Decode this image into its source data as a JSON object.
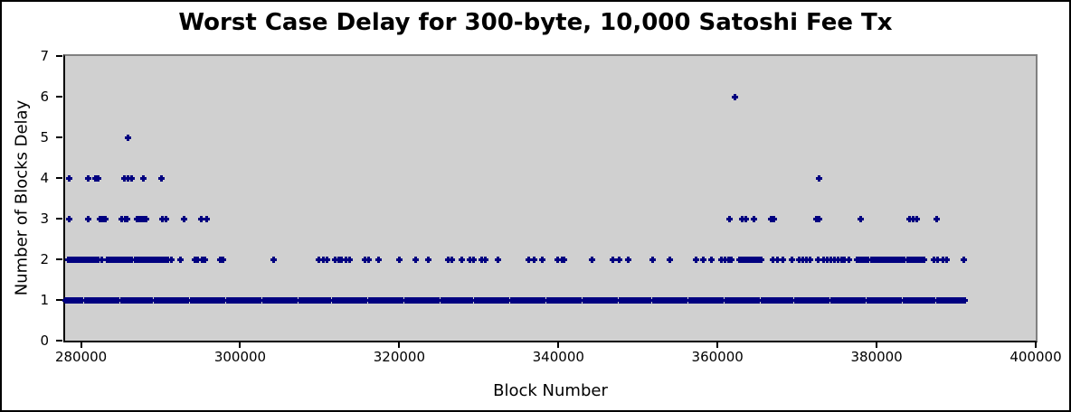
{
  "title": "Worst Case Delay for 300-byte, 10,000 Satoshi Fee Tx",
  "colors": {
    "marker": "#000080",
    "plot_background": "#d0d0d0",
    "axis_line": "#000000",
    "frame_line": "#808080",
    "page_background": "#ffffff",
    "outer_border": "#000000"
  },
  "chart_data": {
    "type": "scatter",
    "title": "Worst Case Delay for 300-byte, 10,000 Satoshi Fee Tx",
    "xlabel": "Block Number",
    "ylabel": "Number of Blocks Delay",
    "xlim": [
      278000,
      400000
    ],
    "ylim": [
      0,
      7
    ],
    "grid": false,
    "legend": null,
    "x_ticks": [
      280000,
      300000,
      320000,
      340000,
      360000,
      380000,
      400000
    ],
    "x_tick_labels": [
      "280000",
      "300000",
      "320000",
      "340000",
      "360000",
      "380000",
      "400000"
    ],
    "y_ticks": [
      0,
      1,
      2,
      3,
      4,
      5,
      6,
      7
    ],
    "y_tick_labels": [
      "0",
      "1",
      "2",
      "3",
      "4",
      "5",
      "6",
      "7"
    ],
    "series": [
      {
        "name": "delay-1-blocks",
        "y": 1,
        "continuous_run": true,
        "x_start": 278000,
        "x_end": 391300,
        "step": 350
      },
      {
        "name": "delay-2-blocks",
        "y": 2,
        "x": [
          278300,
          278650,
          279000,
          279350,
          279700,
          280050,
          280400,
          280750,
          281100,
          281450,
          281800,
          282150,
          282500,
          283200,
          283550,
          283900,
          284250,
          284600,
          284950,
          285300,
          285650,
          286000,
          286350,
          286700,
          287050,
          287400,
          287750,
          288100,
          288450,
          288800,
          289150,
          289500,
          289850,
          290200,
          290550,
          290900,
          291250,
          292400,
          294250,
          294650,
          295150,
          295500,
          297400,
          297750,
          304100,
          309800,
          310450,
          310900,
          311850,
          312300,
          312700,
          313200,
          313650,
          315650,
          316100,
          317350,
          319900,
          322050,
          323600,
          326050,
          326600,
          327750,
          328800,
          329250,
          330300,
          330700,
          332300,
          336250,
          336850,
          337900,
          339800,
          340400,
          340700,
          344200,
          346750,
          347600,
          348750,
          351750,
          353900,
          357250,
          358200,
          359200,
          360400,
          360850,
          361350,
          361700,
          362650,
          362950,
          363250,
          363550,
          363850,
          364150,
          364450,
          364750,
          365050,
          365400,
          366900,
          367450,
          368200,
          369300,
          370250,
          370700,
          371150,
          371600,
          372600,
          373300,
          373700,
          374150,
          374650,
          375050,
          375500,
          375950,
          376450,
          377500,
          377850,
          378200,
          378550,
          378900,
          379250,
          379600,
          379950,
          380300,
          380650,
          381000,
          381350,
          381700,
          382050,
          382400,
          382750,
          383100,
          383450,
          383800,
          384150,
          384500,
          384850,
          385200,
          385550,
          385900,
          387100,
          387600,
          388300,
          388800,
          390950
        ]
      },
      {
        "name": "delay-3-blocks",
        "y": 3,
        "x": [
          278400,
          280800,
          282300,
          282650,
          283000,
          285000,
          285450,
          285750,
          286950,
          287250,
          287550,
          287850,
          288150,
          290200,
          290650,
          292950,
          295100,
          295700,
          361400,
          363100,
          363500,
          364500,
          366700,
          367000,
          372400,
          372700,
          377900,
          384100,
          384550,
          385000,
          387500
        ]
      },
      {
        "name": "delay-4-blocks",
        "y": 4,
        "x": [
          278400,
          280800,
          281700,
          282050,
          285400,
          285800,
          286250,
          287800,
          290000,
          372700
        ]
      },
      {
        "name": "delay-5-blocks",
        "y": 5,
        "x": [
          285900
        ]
      },
      {
        "name": "delay-6-blocks",
        "y": 6,
        "x": [
          362100
        ]
      }
    ]
  }
}
